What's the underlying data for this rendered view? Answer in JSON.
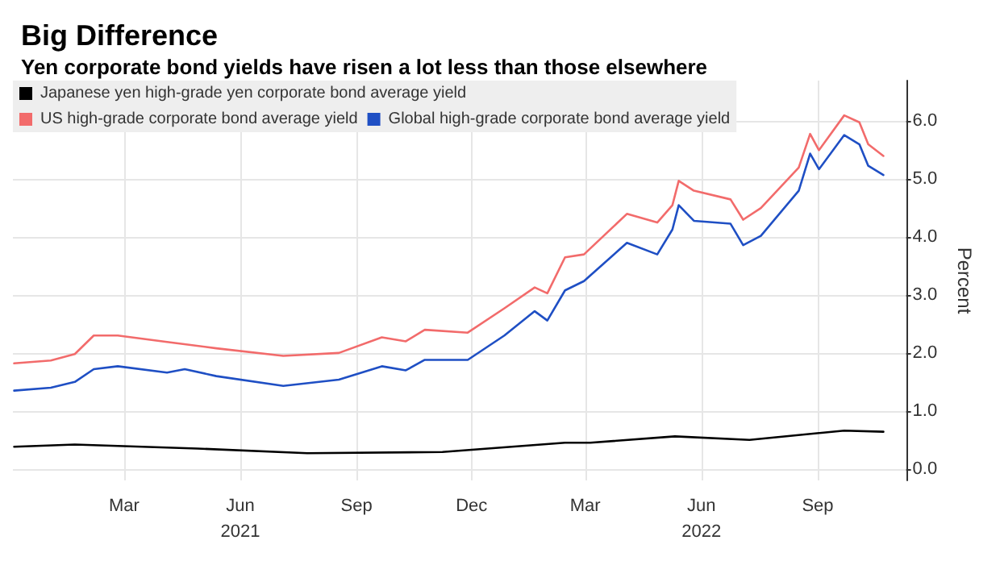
{
  "chart_data": {
    "type": "line",
    "title": "Big Difference",
    "subtitle": "Yen corporate bond yields have risen a lot less than those elsewhere",
    "ylabel": "Percent",
    "xlim": [
      "2020-12-03",
      "2022-11-10"
    ],
    "xticks": [
      {
        "value": "2021-03-01",
        "label": "Mar"
      },
      {
        "value": "2021-06-01",
        "label": "Jun\n2021"
      },
      {
        "value": "2021-09-01",
        "label": "Sep"
      },
      {
        "value": "2021-12-01",
        "label": "Dec"
      },
      {
        "value": "2022-03-01",
        "label": "Mar"
      },
      {
        "value": "2022-06-01",
        "label": "Jun\n2022"
      },
      {
        "value": "2022-09-01",
        "label": "Sep"
      }
    ],
    "ylim": [
      -0.2,
      6.7
    ],
    "yticks": [
      {
        "value": 0,
        "label": "0.0"
      },
      {
        "value": 1,
        "label": "1.0"
      },
      {
        "value": 2,
        "label": "2.0"
      },
      {
        "value": 3,
        "label": "3.0"
      },
      {
        "value": 4,
        "label": "4.0"
      },
      {
        "value": 5,
        "label": "5.0"
      },
      {
        "value": 6,
        "label": "6.0"
      }
    ],
    "grid": true,
    "legend": "top left",
    "marker": "none",
    "line_style": "solid",
    "series": [
      {
        "name": "Japanese yen high-grade yen corporate bond average yield",
        "color": "#000000",
        "x": [
          "2020-12-04",
          "2021-01-21",
          "2021-04-28",
          "2021-07-24",
          "2021-11-08",
          "2022-02-13",
          "2022-03-05",
          "2022-05-11",
          "2022-07-09",
          "2022-09-22",
          "2022-10-23"
        ],
        "values": [
          0.38,
          0.42,
          0.35,
          0.27,
          0.29,
          0.45,
          0.45,
          0.56,
          0.5,
          0.66,
          0.64
        ]
      },
      {
        "name": "US high-grade corporate bond average yield",
        "color": "#f26b6b",
        "x": [
          "2020-12-04",
          "2021-01-02",
          "2021-01-21",
          "2021-02-05",
          "2021-02-24",
          "2021-04-04",
          "2021-05-13",
          "2021-07-05",
          "2021-08-18",
          "2021-09-21",
          "2021-10-10",
          "2021-10-25",
          "2021-11-28",
          "2021-12-27",
          "2022-01-20",
          "2022-01-30",
          "2022-02-13",
          "2022-02-28",
          "2022-04-03",
          "2022-04-27",
          "2022-05-09",
          "2022-05-14",
          "2022-05-26",
          "2022-06-24",
          "2022-07-04",
          "2022-07-18",
          "2022-08-17",
          "2022-08-26",
          "2022-09-02",
          "2022-09-22",
          "2022-10-04",
          "2022-10-11",
          "2022-10-23"
        ],
        "values": [
          1.82,
          1.87,
          1.98,
          2.3,
          2.3,
          2.19,
          2.08,
          1.95,
          2.0,
          2.27,
          2.2,
          2.4,
          2.35,
          2.77,
          3.13,
          3.03,
          3.65,
          3.7,
          4.4,
          4.25,
          4.55,
          4.97,
          4.8,
          4.65,
          4.3,
          4.5,
          5.2,
          5.78,
          5.5,
          6.1,
          5.98,
          5.6,
          5.4
        ]
      },
      {
        "name": "Global high-grade corporate bond average yield",
        "color": "#1f4fc4",
        "x": [
          "2020-12-04",
          "2021-01-02",
          "2021-01-21",
          "2021-02-05",
          "2021-02-24",
          "2021-04-04",
          "2021-04-18",
          "2021-05-13",
          "2021-07-05",
          "2021-08-18",
          "2021-09-21",
          "2021-10-10",
          "2021-10-25",
          "2021-11-28",
          "2021-12-27",
          "2022-01-20",
          "2022-01-30",
          "2022-02-13",
          "2022-02-28",
          "2022-04-03",
          "2022-04-27",
          "2022-05-09",
          "2022-05-14",
          "2022-05-26",
          "2022-06-24",
          "2022-07-04",
          "2022-07-18",
          "2022-08-17",
          "2022-08-26",
          "2022-09-02",
          "2022-09-22",
          "2022-10-04",
          "2022-10-11",
          "2022-10-23"
        ],
        "values": [
          1.35,
          1.4,
          1.5,
          1.72,
          1.77,
          1.66,
          1.72,
          1.6,
          1.43,
          1.54,
          1.77,
          1.7,
          1.88,
          1.88,
          2.3,
          2.72,
          2.56,
          3.08,
          3.24,
          3.9,
          3.7,
          4.13,
          4.55,
          4.28,
          4.23,
          3.86,
          4.02,
          4.8,
          5.44,
          5.17,
          5.76,
          5.6,
          5.23,
          5.07
        ]
      }
    ]
  }
}
